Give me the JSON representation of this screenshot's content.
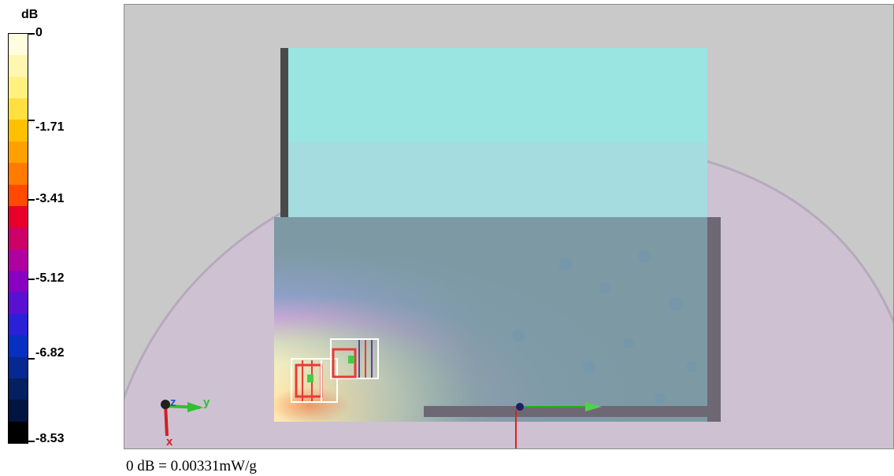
{
  "legend": {
    "title": "dB",
    "ticks": [
      "0",
      "-1.71",
      "-3.41",
      "-5.12",
      "-6.82",
      "-8.53"
    ],
    "colors": [
      "#fffde0",
      "#fff7b0",
      "#fff080",
      "#ffe040",
      "#ffc000",
      "#ffa000",
      "#ff7a00",
      "#ff4a00",
      "#e8002a",
      "#cc0066",
      "#b000a0",
      "#8a00c0",
      "#5a10d0",
      "#2a20d8",
      "#0830c0",
      "#062890",
      "#042060",
      "#021440",
      "#000000"
    ]
  },
  "view": {
    "axis_labels": {
      "z": "z",
      "y": "y",
      "x": "x"
    }
  },
  "reference": {
    "text": "0 dB = 0.00331mW/g"
  },
  "colors": {
    "phantom": "#cdc0d2",
    "cyan_panel": "#9ae4e2",
    "background": "#c9c9c9"
  }
}
